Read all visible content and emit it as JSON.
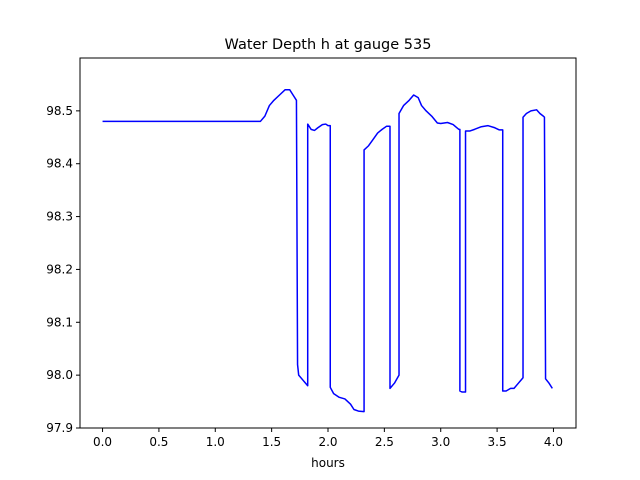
{
  "chart_data": {
    "type": "line",
    "title": "Water Depth h at gauge 535",
    "xlabel": "hours",
    "ylabel": "",
    "xlim": [
      -0.2,
      4.2
    ],
    "ylim": [
      97.9,
      98.6
    ],
    "xticks": [
      0.0,
      0.5,
      1.0,
      1.5,
      2.0,
      2.5,
      3.0,
      3.5,
      4.0
    ],
    "xtick_labels": [
      "0.0",
      "0.5",
      "1.0",
      "1.5",
      "2.0",
      "2.5",
      "3.0",
      "3.5",
      "4.0"
    ],
    "yticks": [
      97.9,
      98.0,
      98.1,
      98.2,
      98.3,
      98.4,
      98.5
    ],
    "ytick_labels": [
      "97.9",
      "98.0",
      "98.1",
      "98.2",
      "98.3",
      "98.4",
      "98.5"
    ],
    "grid": false,
    "series": [
      {
        "color": "#0000ff",
        "x": [
          0.0,
          0.5,
          1.0,
          1.4,
          1.44,
          1.48,
          1.52,
          1.57,
          1.62,
          1.66,
          1.69,
          1.72,
          1.73,
          1.74,
          1.78,
          1.82,
          1.82,
          1.85,
          1.88,
          1.91,
          1.95,
          1.98,
          2.0,
          2.02,
          2.02,
          2.05,
          2.1,
          2.15,
          2.2,
          2.23,
          2.27,
          2.32,
          2.32,
          2.36,
          2.4,
          2.44,
          2.48,
          2.52,
          2.55,
          2.55,
          2.59,
          2.63,
          2.63,
          2.67,
          2.72,
          2.76,
          2.8,
          2.83,
          2.87,
          2.92,
          2.97,
          3.0,
          3.06,
          3.11,
          3.16,
          3.17,
          3.17,
          3.19,
          3.22,
          3.22,
          3.26,
          3.3,
          3.36,
          3.42,
          3.48,
          3.52,
          3.55,
          3.55,
          3.58,
          3.62,
          3.65,
          3.69,
          3.73,
          3.73,
          3.76,
          3.8,
          3.85,
          3.88,
          3.91,
          3.92,
          3.93,
          3.96,
          3.99
        ],
        "y": [
          98.48,
          98.48,
          98.48,
          98.48,
          98.49,
          98.51,
          98.52,
          98.53,
          98.54,
          98.54,
          98.53,
          98.52,
          98.02,
          98.0,
          97.99,
          97.98,
          98.475,
          98.465,
          98.463,
          98.468,
          98.474,
          98.475,
          98.472,
          98.472,
          97.977,
          97.965,
          97.958,
          97.955,
          97.945,
          97.935,
          97.932,
          97.931,
          98.426,
          98.434,
          98.446,
          98.458,
          98.465,
          98.471,
          98.471,
          97.975,
          97.985,
          98.0,
          98.495,
          98.51,
          98.52,
          98.53,
          98.525,
          98.51,
          98.5,
          98.49,
          98.477,
          98.476,
          98.478,
          98.474,
          98.465,
          98.465,
          97.97,
          97.968,
          97.968,
          98.462,
          98.462,
          98.465,
          98.47,
          98.472,
          98.468,
          98.464,
          98.464,
          97.97,
          97.97,
          97.975,
          97.975,
          97.985,
          97.995,
          98.488,
          98.495,
          98.5,
          98.502,
          98.495,
          98.49,
          98.488,
          97.993,
          97.985,
          97.975
        ]
      }
    ]
  }
}
